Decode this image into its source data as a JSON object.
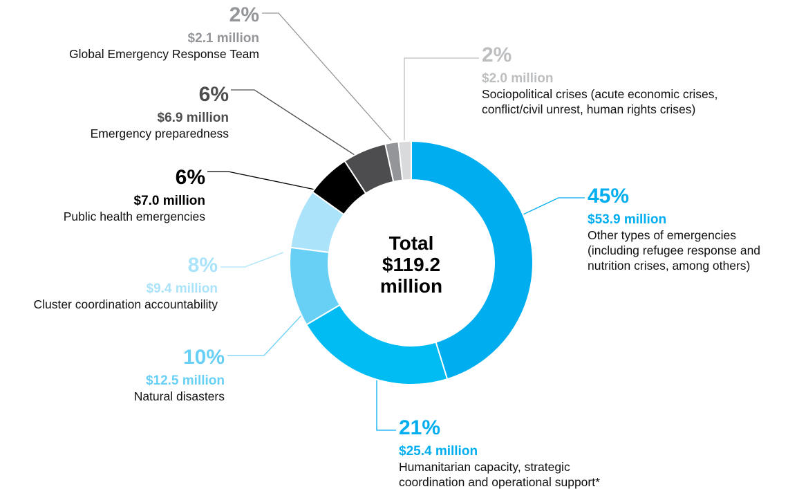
{
  "chart_data": {
    "type": "pie",
    "center_label": [
      "Total",
      "$119.2",
      "million"
    ],
    "slices": [
      {
        "percent_label": "45%",
        "value": 53.9,
        "amount_label": "$53.9 million",
        "description": [
          "Other types of emergencies",
          "(including refugee response and",
          "nutrition crises, among others)"
        ],
        "color": "#00aeef",
        "text_color": "#00aeef"
      },
      {
        "percent_label": "21%",
        "value": 25.4,
        "amount_label": "$25.4 million",
        "description": [
          "Humanitarian capacity, strategic",
          "coordination and operational support*"
        ],
        "color": "#00bcf2",
        "text_color": "#00aeef"
      },
      {
        "percent_label": "10%",
        "value": 12.5,
        "amount_label": "$12.5 million",
        "description": [
          "Natural disasters"
        ],
        "color": "#69d0f5",
        "text_color": "#69d0f5"
      },
      {
        "percent_label": "8%",
        "value": 9.4,
        "amount_label": "$9.4 million",
        "description": [
          "Cluster coordination accountability"
        ],
        "color": "#abe3fa",
        "text_color": "#abe3fa"
      },
      {
        "percent_label": "6%",
        "value": 7.0,
        "amount_label": "$7.0 million",
        "description": [
          "Public health emergencies"
        ],
        "color": "#000000",
        "text_color": "#000000"
      },
      {
        "percent_label": "6%",
        "value": 6.9,
        "amount_label": "$6.9 million",
        "description": [
          "Emergency preparedness"
        ],
        "color": "#4d4d4f",
        "text_color": "#4d4d4f"
      },
      {
        "percent_label": "2%",
        "value": 2.1,
        "amount_label": "$2.1 million",
        "description": [
          "Global Emergency Response Team"
        ],
        "color": "#939598",
        "text_color": "#939598"
      },
      {
        "percent_label": "2%",
        "value": 2.0,
        "amount_label": "$2.0 million",
        "description": [
          "Sociopolitical crises (acute economic crises,",
          "conflict/civil unrest, human rights crises)"
        ],
        "color": "#d9dadb",
        "text_color": "#bcbec0"
      }
    ]
  }
}
